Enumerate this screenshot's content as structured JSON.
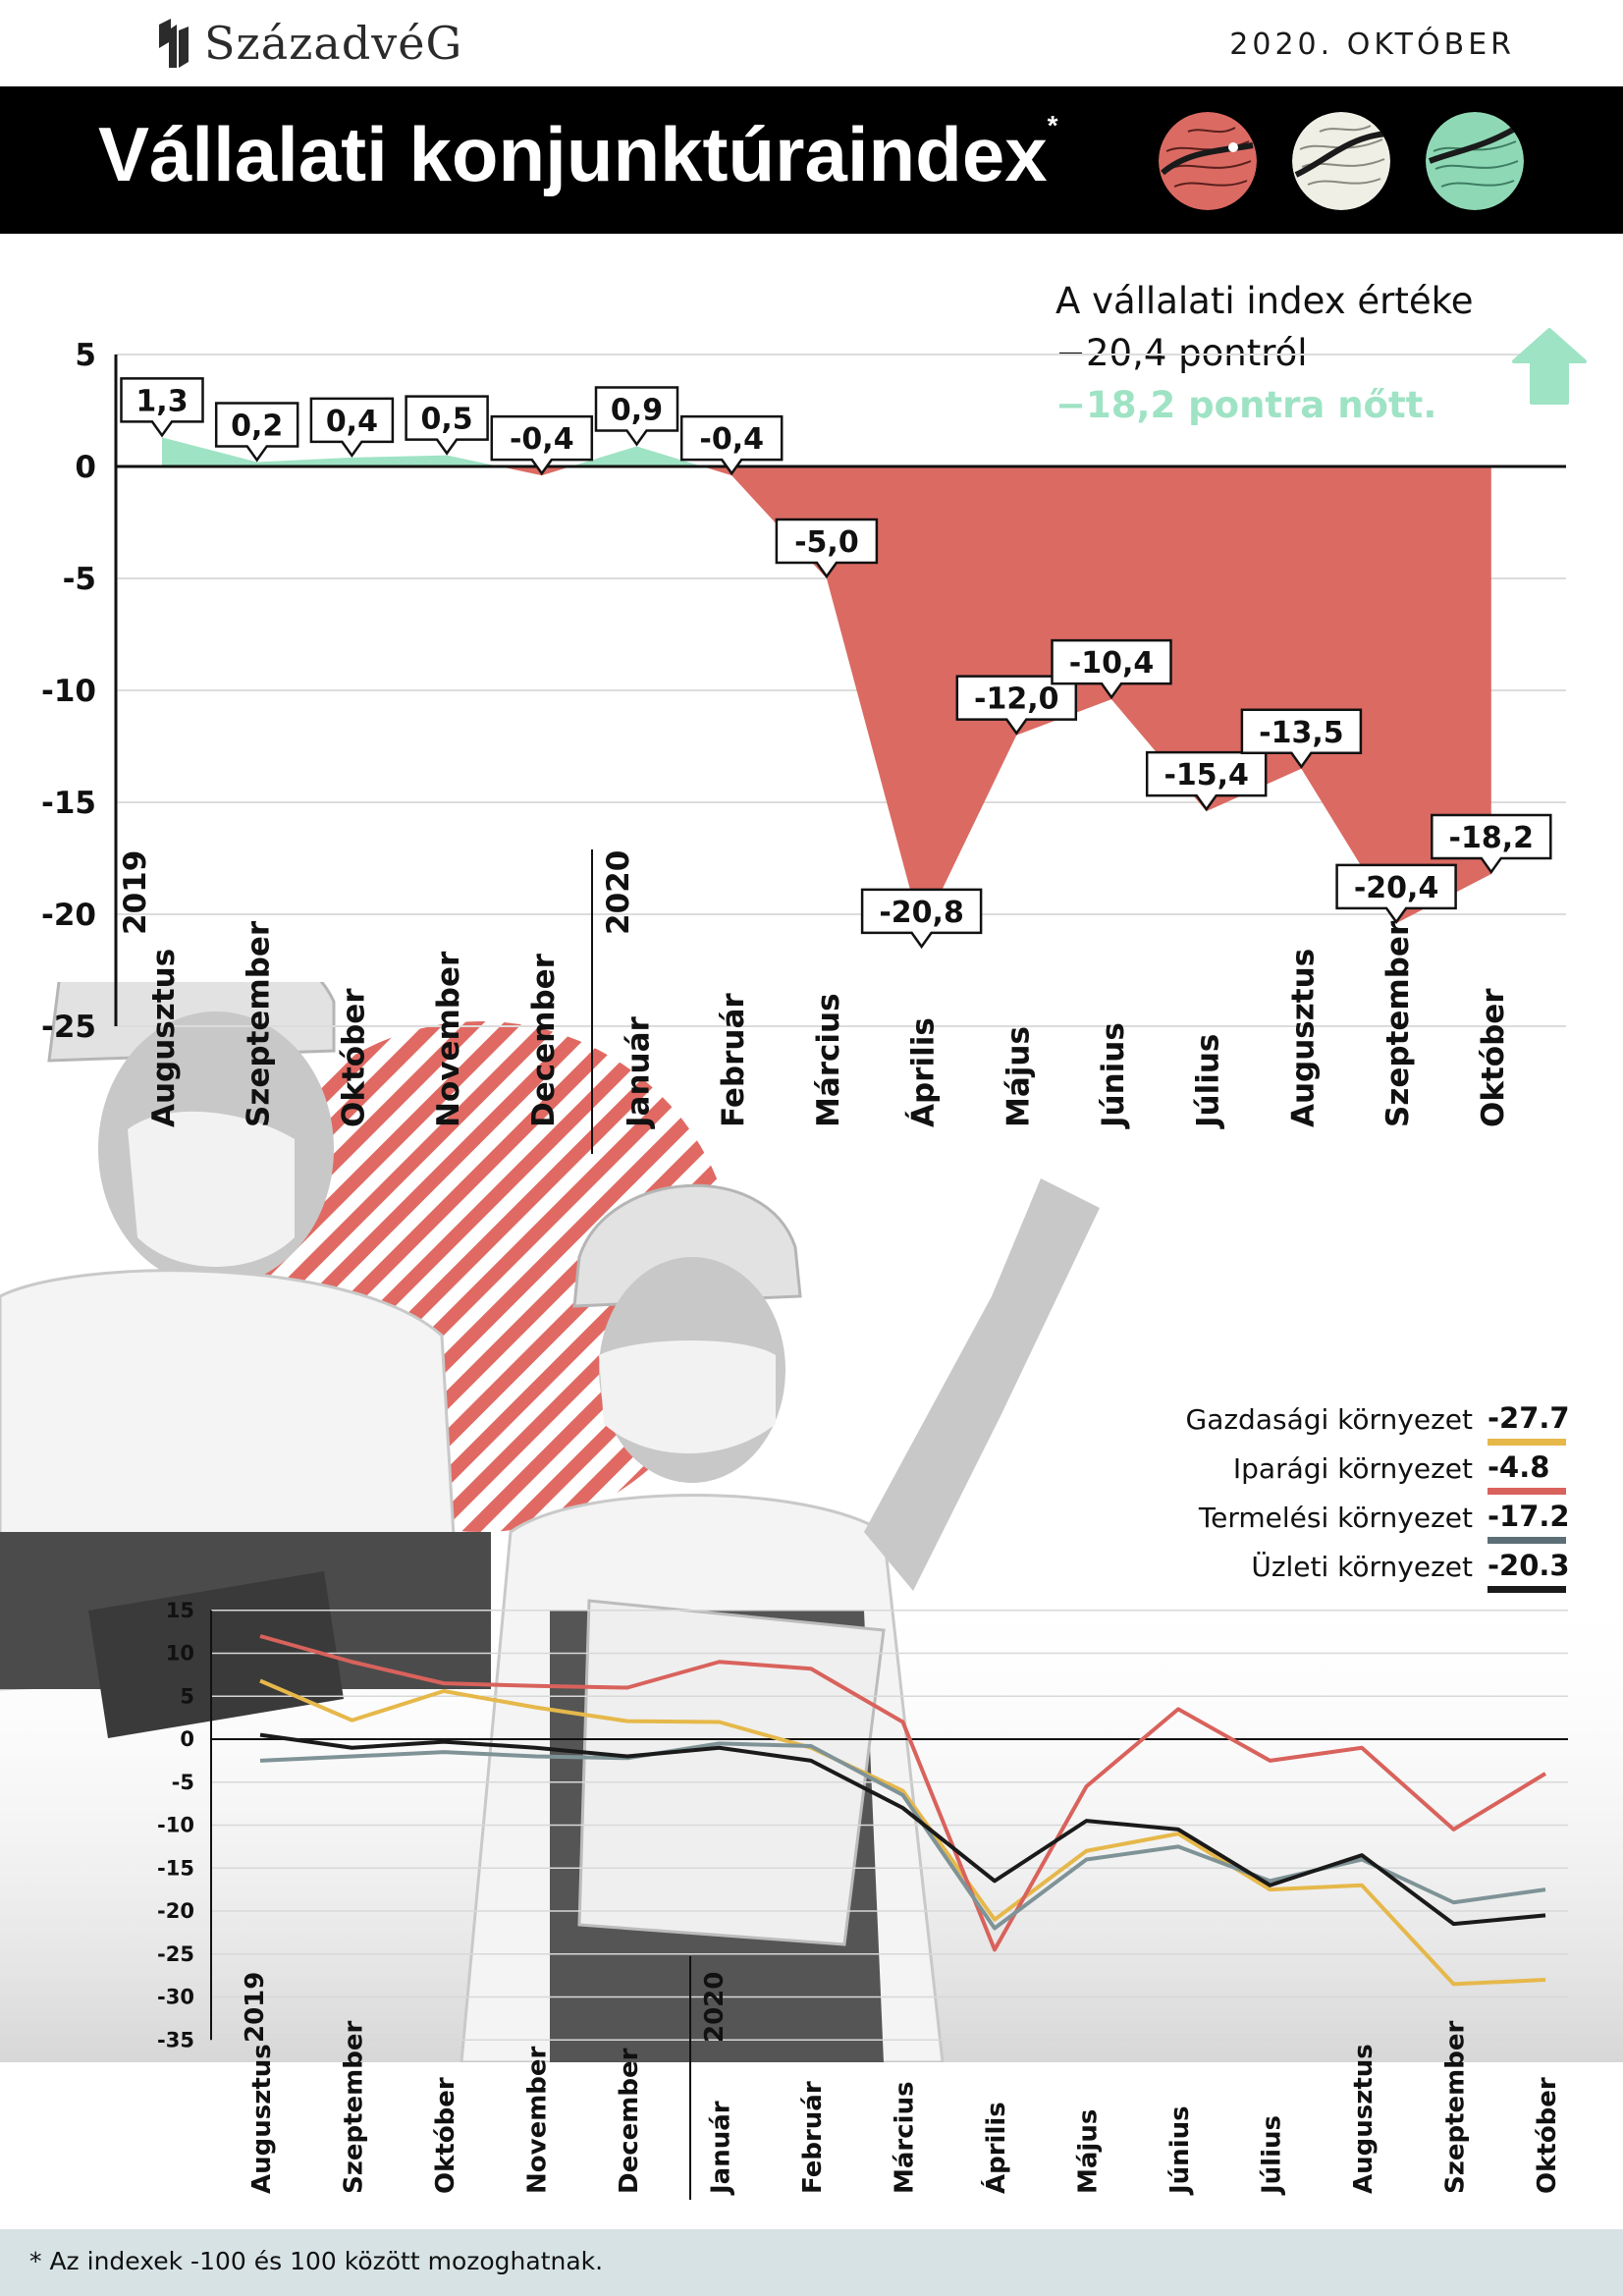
{
  "header": {
    "brand": "SzázadvéG",
    "date": "2020. OKTÓBER"
  },
  "title": {
    "text": "Vállalati konjunktúraindex",
    "mark": "*"
  },
  "badges": [
    {
      "name": "red",
      "color": "#db6a63"
    },
    {
      "name": "white",
      "color": "#f0efe6"
    },
    {
      "name": "green",
      "color": "#8fd8b5"
    }
  ],
  "note": {
    "line1": "A vállalati index értéke",
    "line2": "−20,4 pontról",
    "line3": "−18,2 pontra nőtt."
  },
  "colors": {
    "negative_area": "#db6a63",
    "positive_area": "#9ee3c4",
    "arrow": "#9ee3c4"
  },
  "icons": {
    "arrow": "arrow-up-icon",
    "logo": "castle-logo-icon"
  },
  "chart_data": [
    {
      "type": "area",
      "ylim": [
        -25,
        5
      ],
      "yticks": [
        "5",
        "0",
        "-5",
        "-10",
        "-15",
        "-20",
        "-25"
      ],
      "grid": true,
      "year_labels": [
        "2019",
        "2020"
      ],
      "categories": [
        "Augusztus",
        "Szeptember",
        "Október",
        "November",
        "December",
        "Január",
        "Február",
        "Március",
        "Április",
        "Május",
        "Június",
        "Július",
        "Augusztus",
        "Szeptember",
        "Október"
      ],
      "values": [
        1.3,
        0.2,
        0.4,
        0.5,
        -0.4,
        0.9,
        -0.4,
        -5.0,
        -20.8,
        -12.0,
        -10.4,
        -15.4,
        -13.5,
        -20.4,
        -18.2
      ],
      "data_labels": [
        "1,3",
        "0,2",
        "0,4",
        "0,5",
        "-0,4",
        "0,9",
        "-0,4",
        "-5,0",
        "-20,8",
        "-12,0",
        "-10,4",
        "-15,4",
        "-13,5",
        "-20,4",
        "-18,2"
      ]
    },
    {
      "type": "line",
      "ylim": [
        -35,
        15
      ],
      "yticks": [
        "15",
        "10",
        "5",
        "0",
        "-5",
        "-10",
        "-15",
        "-20",
        "-25",
        "-30",
        "-35"
      ],
      "grid": true,
      "year_labels": [
        "2019",
        "2020"
      ],
      "categories": [
        "Augusztus",
        "Szeptember",
        "Október",
        "November",
        "December",
        "Január",
        "Február",
        "Március",
        "Április",
        "Május",
        "Június",
        "Július",
        "Augusztus",
        "Szeptember",
        "Október"
      ],
      "legend": [
        {
          "name": "Gazdasági környezet",
          "value": "-27.7",
          "color": "#e6b84a"
        },
        {
          "name": "Iparági környezet",
          "value": "-4.8",
          "color": "#d9625c"
        },
        {
          "name": "Termelési környezet",
          "value": "-17.2",
          "color": "#5c6e76"
        },
        {
          "name": "Üzleti környezet",
          "value": "-20.3",
          "color": "#1a1a1a"
        }
      ],
      "series": [
        {
          "name": "Gazdasági környezet",
          "color": "#e6b84a",
          "values": [
            6.8,
            2.2,
            5.6,
            3.7,
            2.1,
            2.0,
            -1.0,
            -6.0,
            -21.0,
            -13.0,
            -11.0,
            -17.5,
            -17.0,
            -28.5,
            -28.0
          ]
        },
        {
          "name": "Iparági környezet",
          "color": "#d9625c",
          "values": [
            12.0,
            9.0,
            6.5,
            6.2,
            6.0,
            9.0,
            8.2,
            2.0,
            -24.5,
            -5.5,
            3.5,
            -2.5,
            -1.0,
            -10.5,
            -4.0
          ]
        },
        {
          "name": "Termelési környezet",
          "color": "#7f9397",
          "values": [
            -2.5,
            -2.0,
            -1.5,
            -2.0,
            -2.2,
            -0.5,
            -0.8,
            -6.5,
            -22.0,
            -14.0,
            -12.5,
            -16.5,
            -14.0,
            -19.0,
            -17.5
          ]
        },
        {
          "name": "Üzleti környezet",
          "color": "#1a1a1a",
          "values": [
            0.5,
            -1.0,
            -0.3,
            -1.0,
            -2.0,
            -1.0,
            -2.5,
            -8.0,
            -16.5,
            -9.5,
            -10.5,
            -17.0,
            -13.5,
            -21.5,
            -20.5
          ]
        }
      ]
    }
  ],
  "footer": {
    "note": "* Az indexek -100 és 100 között mozoghatnak."
  }
}
